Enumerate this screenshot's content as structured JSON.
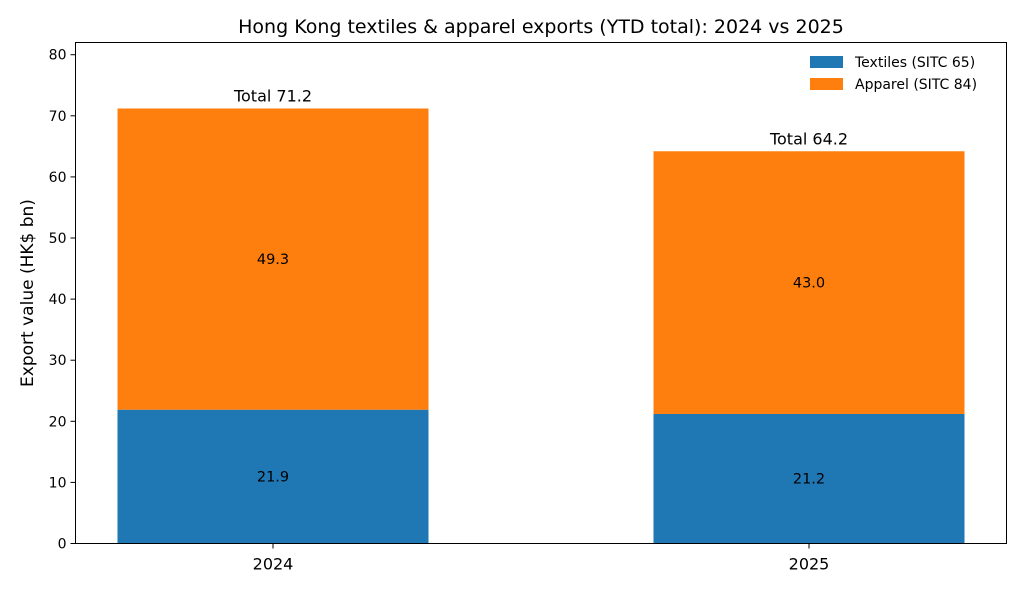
{
  "chart_data": {
    "type": "bar",
    "stacked": true,
    "title": "Hong Kong textiles & apparel exports (YTD total): 2024 vs 2025",
    "xlabel": "",
    "ylabel": "Export value (HK$ bn)",
    "categories": [
      "2024",
      "2025"
    ],
    "series": [
      {
        "name": "Textiles (SITC 65)",
        "color": "#1f77b4",
        "values": [
          21.9,
          21.2
        ],
        "labels": [
          "21.9",
          "21.2"
        ]
      },
      {
        "name": "Apparel (SITC 84)",
        "color": "#ff7f0e",
        "values": [
          49.3,
          43.0
        ],
        "labels": [
          "49.3",
          "43.0"
        ]
      }
    ],
    "totals": [
      71.2,
      64.2
    ],
    "total_labels": [
      "Total 71.2",
      "Total 64.2"
    ],
    "ylim": [
      0,
      82
    ],
    "yticks": [
      0,
      10,
      20,
      30,
      40,
      50,
      60,
      70,
      80
    ],
    "ytick_labels": [
      "0",
      "10",
      "20",
      "30",
      "40",
      "50",
      "60",
      "70",
      "80"
    ],
    "grid": false,
    "legend_position": "top-right"
  }
}
